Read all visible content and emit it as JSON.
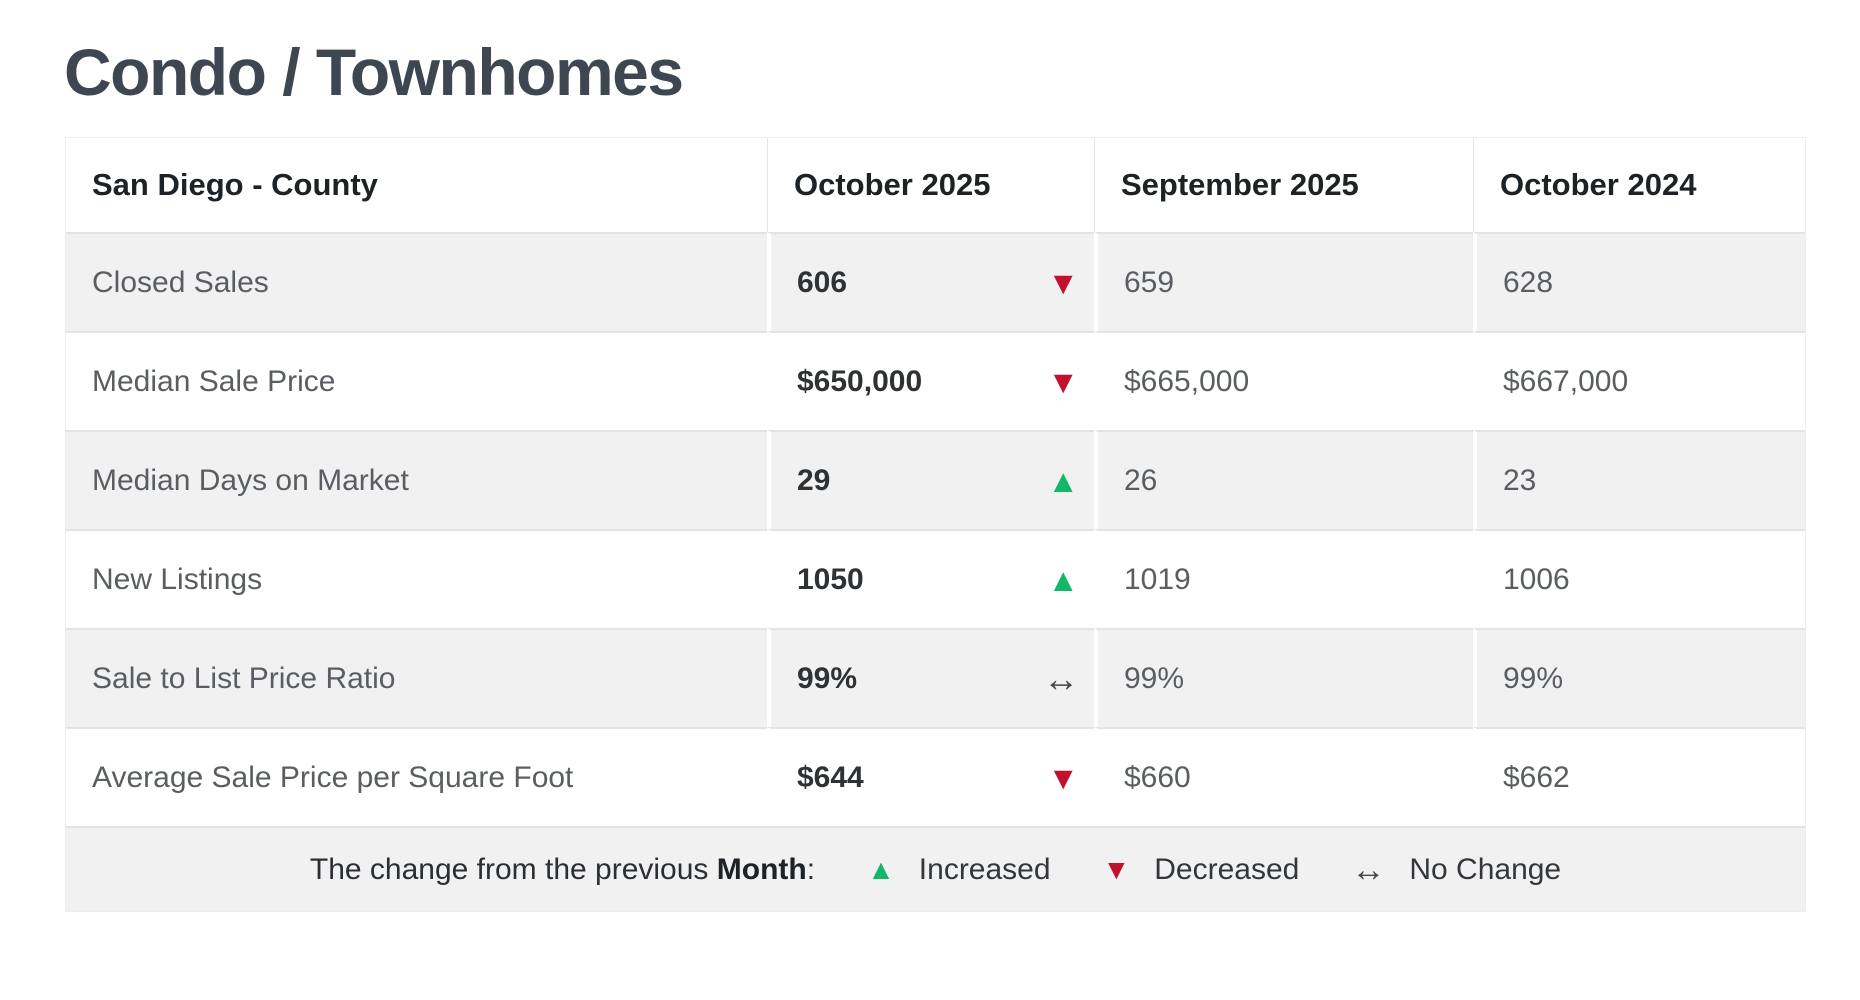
{
  "page": {
    "title": "Condo / Townhomes"
  },
  "colors": {
    "increase_green": "#12b76a",
    "decrease_red": "#c0112f",
    "no_change_gray": "#43484c",
    "band_gray": "#f1f1f2",
    "title_slate": "#3e4751"
  },
  "icons": {
    "increased": "▲",
    "decreased": "▼",
    "no_change": "↔"
  },
  "table": {
    "region_header": "San Diego - County",
    "columns": [
      "October 2025",
      "September 2025",
      "October 2024"
    ],
    "rows": [
      {
        "label": "Closed Sales",
        "current": "606",
        "change": "decreased",
        "previous": "659",
        "year_ago": "628"
      },
      {
        "label": "Median Sale Price",
        "current": "$650,000",
        "change": "decreased",
        "previous": "$665,000",
        "year_ago": "$667,000"
      },
      {
        "label": "Median Days on Market",
        "current": "29",
        "change": "increased",
        "previous": "26",
        "year_ago": "23"
      },
      {
        "label": "New Listings",
        "current": "1050",
        "change": "increased",
        "previous": "1019",
        "year_ago": "1006"
      },
      {
        "label": "Sale to List Price Ratio",
        "current": "99%",
        "change": "no_change",
        "previous": "99%",
        "year_ago": "99%"
      },
      {
        "label": "Average Sale Price per Square Foot",
        "current": "$644",
        "change": "decreased",
        "previous": "$660",
        "year_ago": "$662"
      }
    ],
    "legend": {
      "prefix": "The change from the previous ",
      "period_label": "Month",
      "colon": ":",
      "increased_label": "Increased",
      "decreased_label": "Decreased",
      "no_change_label": "No Change"
    }
  }
}
